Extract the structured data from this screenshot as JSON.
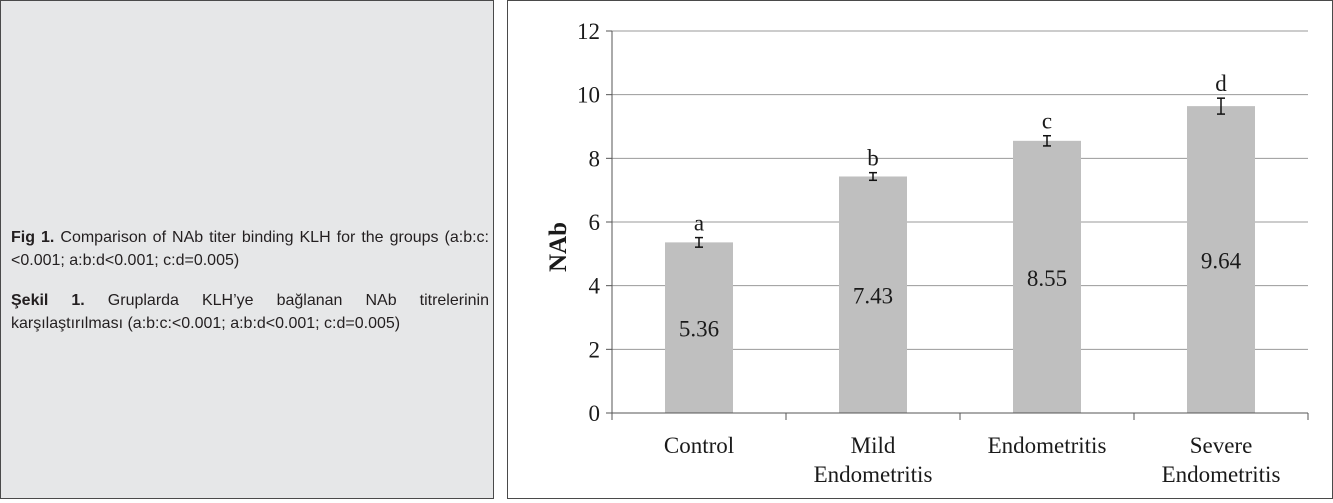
{
  "caption": {
    "en_label": "Fig 1.",
    "en_text": "Comparison of NAb titer binding KLH for the groups (a:b:c:<0.001; a:b:d<0.001; c:d=0.005)",
    "tr_label": "Şekil 1.",
    "tr_text": "Gruplarda KLH’ye bağlanan NAb titrelerinin karşılaştırılması (a:b:c:<0.001; a:b:d<0.001; c:d=0.005)"
  },
  "chart_data": {
    "type": "bar",
    "categories": [
      [
        "Control"
      ],
      [
        "Mild",
        "Endometritis"
      ],
      [
        "Endometritis"
      ],
      [
        "Severe",
        "Endometritis"
      ]
    ],
    "values": [
      5.36,
      7.43,
      8.55,
      9.64
    ],
    "data_labels": [
      "5.36",
      "7.43",
      "8.55",
      "9.64"
    ],
    "significance_letters": [
      "a",
      "b",
      "c",
      "d"
    ],
    "error": [
      0.15,
      0.12,
      0.16,
      0.25
    ],
    "ylabel": "NAb",
    "xlabel": "",
    "ylim": [
      0,
      12
    ],
    "yticks": [
      0,
      2,
      4,
      6,
      8,
      10,
      12
    ],
    "grid": true,
    "bar_color": "#bfbfbf",
    "grid_color": "#9a9a9a"
  }
}
